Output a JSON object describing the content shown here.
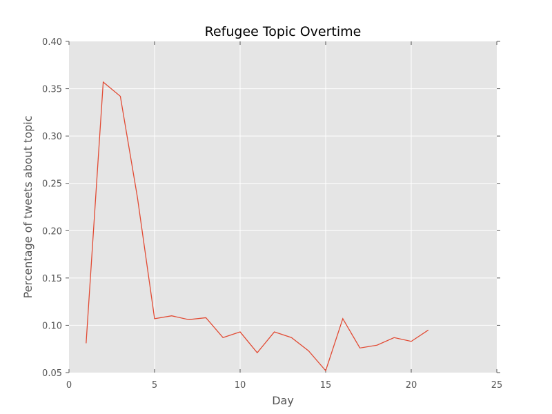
{
  "chart_data": {
    "type": "line",
    "title": "Refugee Topic Overtime",
    "xlabel": "Day",
    "ylabel": "Percentage of tweets about topic",
    "xlim": [
      0,
      25
    ],
    "ylim": [
      0.05,
      0.4
    ],
    "x_ticks": [
      0,
      5,
      10,
      15,
      20,
      25
    ],
    "y_ticks": [
      0.05,
      0.1,
      0.15,
      0.2,
      0.25,
      0.3,
      0.35,
      0.4
    ],
    "x_tick_labels": [
      "0",
      "5",
      "10",
      "15",
      "20",
      "25"
    ],
    "y_tick_labels": [
      "0.05",
      "0.10",
      "0.15",
      "0.20",
      "0.25",
      "0.30",
      "0.35",
      "0.40"
    ],
    "grid": true,
    "series": [
      {
        "x": [
          1,
          2,
          3,
          4,
          5,
          6,
          7,
          8,
          9,
          10,
          11,
          12,
          13,
          14,
          15,
          16,
          17,
          18,
          19,
          20,
          21
        ],
        "y": [
          0.081,
          0.357,
          0.342,
          0.235,
          0.107,
          0.11,
          0.106,
          0.108,
          0.087,
          0.093,
          0.071,
          0.093,
          0.087,
          0.073,
          0.052,
          0.107,
          0.076,
          0.079,
          0.087,
          0.083,
          0.095
        ]
      }
    ],
    "colors": {
      "line": "#e24a33",
      "background": "#e5e5e5",
      "grid": "#ffffff",
      "tick_text": "#555555",
      "title": "#000000"
    }
  }
}
